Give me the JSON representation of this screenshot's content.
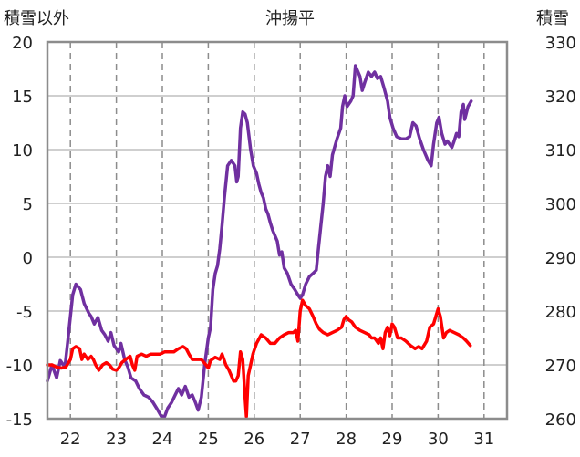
{
  "chart_data": {
    "type": "line",
    "title": "沖揚平",
    "left_axis_label": "積雪以外",
    "right_axis_label": "積雪",
    "x_ticks": [
      "22",
      "23",
      "24",
      "25",
      "26",
      "27",
      "28",
      "29",
      "30",
      "31"
    ],
    "xlim": [
      21.5,
      31.5
    ],
    "y_left": {
      "min": -15,
      "max": 20,
      "ticks": [
        "-15",
        "-10",
        "-5",
        "0",
        "5",
        "10",
        "15",
        "20"
      ]
    },
    "y_right": {
      "min": 260,
      "max": 330,
      "ticks": [
        "260",
        "270",
        "280",
        "290",
        "300",
        "310",
        "320",
        "330"
      ]
    },
    "grid": {
      "vertical": "dashed",
      "horizontal": "solid"
    },
    "series": [
      {
        "name": "",
        "axis": "left",
        "color": "#7030a0",
        "points": [
          [
            21.5,
            -11.5
          ],
          [
            21.6,
            -10.0
          ],
          [
            21.7,
            -11.2
          ],
          [
            21.78,
            -9.6
          ],
          [
            21.88,
            -10.2
          ],
          [
            21.95,
            -7.5
          ],
          [
            22.05,
            -3.5
          ],
          [
            22.12,
            -2.5
          ],
          [
            22.22,
            -3.0
          ],
          [
            22.3,
            -4.3
          ],
          [
            22.4,
            -5.2
          ],
          [
            22.45,
            -5.5
          ],
          [
            22.52,
            -6.2
          ],
          [
            22.6,
            -5.6
          ],
          [
            22.68,
            -6.8
          ],
          [
            22.75,
            -7.2
          ],
          [
            22.82,
            -7.8
          ],
          [
            22.88,
            -7.0
          ],
          [
            22.95,
            -8.2
          ],
          [
            23.05,
            -8.8
          ],
          [
            23.1,
            -8.0
          ],
          [
            23.18,
            -9.5
          ],
          [
            23.25,
            -10.2
          ],
          [
            23.32,
            -11.2
          ],
          [
            23.42,
            -11.5
          ],
          [
            23.5,
            -12.2
          ],
          [
            23.6,
            -12.8
          ],
          [
            23.7,
            -13.0
          ],
          [
            23.8,
            -13.5
          ],
          [
            23.9,
            -14.2
          ],
          [
            23.98,
            -14.8
          ],
          [
            24.05,
            -14.8
          ],
          [
            24.12,
            -14.0
          ],
          [
            24.2,
            -13.5
          ],
          [
            24.28,
            -12.8
          ],
          [
            24.35,
            -12.2
          ],
          [
            24.42,
            -12.8
          ],
          [
            24.5,
            -12.0
          ],
          [
            24.58,
            -13.0
          ],
          [
            24.65,
            -12.8
          ],
          [
            24.72,
            -13.5
          ],
          [
            24.78,
            -14.2
          ],
          [
            24.85,
            -13.0
          ],
          [
            24.92,
            -10.0
          ],
          [
            25.0,
            -7.5
          ],
          [
            25.05,
            -6.5
          ],
          [
            25.1,
            -3.0
          ],
          [
            25.15,
            -1.5
          ],
          [
            25.2,
            -0.8
          ],
          [
            25.25,
            0.8
          ],
          [
            25.3,
            3.0
          ],
          [
            25.35,
            5.5
          ],
          [
            25.42,
            8.5
          ],
          [
            25.5,
            9.0
          ],
          [
            25.58,
            8.5
          ],
          [
            25.62,
            7.0
          ],
          [
            25.65,
            7.5
          ],
          [
            25.7,
            12.0
          ],
          [
            25.75,
            13.5
          ],
          [
            25.8,
            13.3
          ],
          [
            25.85,
            12.5
          ],
          [
            25.92,
            10.0
          ],
          [
            25.98,
            8.5
          ],
          [
            26.05,
            7.8
          ],
          [
            26.1,
            6.8
          ],
          [
            26.15,
            6.0
          ],
          [
            26.2,
            5.5
          ],
          [
            26.25,
            4.5
          ],
          [
            26.3,
            4.0
          ],
          [
            26.35,
            3.2
          ],
          [
            26.4,
            2.5
          ],
          [
            26.5,
            1.5
          ],
          [
            26.55,
            0.2
          ],
          [
            26.6,
            0.5
          ],
          [
            26.65,
            -1.0
          ],
          [
            26.72,
            -1.5
          ],
          [
            26.8,
            -2.5
          ],
          [
            26.88,
            -3.0
          ],
          [
            26.95,
            -3.5
          ],
          [
            27.0,
            -3.8
          ],
          [
            27.05,
            -3.5
          ],
          [
            27.12,
            -2.5
          ],
          [
            27.2,
            -1.8
          ],
          [
            27.28,
            -1.5
          ],
          [
            27.35,
            -1.2
          ],
          [
            27.4,
            1.0
          ],
          [
            27.45,
            3.0
          ],
          [
            27.5,
            5.0
          ],
          [
            27.55,
            7.5
          ],
          [
            27.6,
            8.5
          ],
          [
            27.65,
            7.5
          ],
          [
            27.7,
            9.5
          ],
          [
            27.8,
            11.0
          ],
          [
            27.88,
            12.0
          ],
          [
            27.92,
            14.0
          ],
          [
            27.97,
            15.0
          ],
          [
            28.02,
            14.0
          ],
          [
            28.1,
            14.5
          ],
          [
            28.15,
            15.0
          ],
          [
            28.2,
            17.8
          ],
          [
            28.25,
            17.3
          ],
          [
            28.3,
            16.8
          ],
          [
            28.35,
            15.5
          ],
          [
            28.4,
            16.2
          ],
          [
            28.48,
            17.2
          ],
          [
            28.55,
            16.8
          ],
          [
            28.62,
            17.2
          ],
          [
            28.68,
            16.6
          ],
          [
            28.75,
            16.8
          ],
          [
            28.82,
            15.8
          ],
          [
            28.9,
            14.5
          ],
          [
            28.95,
            13.0
          ],
          [
            29.02,
            12.0
          ],
          [
            29.1,
            11.2
          ],
          [
            29.2,
            11.0
          ],
          [
            29.3,
            11.0
          ],
          [
            29.38,
            11.2
          ],
          [
            29.45,
            12.5
          ],
          [
            29.52,
            12.2
          ],
          [
            29.6,
            11.0
          ],
          [
            29.68,
            10.0
          ],
          [
            29.78,
            9.0
          ],
          [
            29.85,
            8.5
          ],
          [
            29.9,
            10.5
          ],
          [
            29.97,
            12.5
          ],
          [
            30.02,
            13.0
          ],
          [
            30.08,
            11.5
          ],
          [
            30.15,
            10.5
          ],
          [
            30.2,
            10.8
          ],
          [
            30.25,
            10.5
          ],
          [
            30.3,
            10.2
          ],
          [
            30.35,
            10.8
          ],
          [
            30.4,
            11.5
          ],
          [
            30.45,
            11.2
          ],
          [
            30.5,
            13.5
          ],
          [
            30.55,
            14.2
          ],
          [
            30.58,
            12.8
          ],
          [
            30.65,
            14.0
          ],
          [
            30.72,
            14.5
          ]
        ]
      },
      {
        "name": "",
        "axis": "left",
        "color": "#ff0000",
        "points": [
          [
            21.5,
            -10.0
          ],
          [
            21.6,
            -10.0
          ],
          [
            21.7,
            -10.2
          ],
          [
            21.8,
            -10.3
          ],
          [
            21.9,
            -10.2
          ],
          [
            22.0,
            -9.5
          ],
          [
            22.05,
            -8.5
          ],
          [
            22.12,
            -8.3
          ],
          [
            22.2,
            -8.5
          ],
          [
            22.25,
            -9.5
          ],
          [
            22.3,
            -9.0
          ],
          [
            22.38,
            -9.5
          ],
          [
            22.45,
            -9.2
          ],
          [
            22.5,
            -9.5
          ],
          [
            22.55,
            -10.0
          ],
          [
            22.62,
            -10.5
          ],
          [
            22.7,
            -10.0
          ],
          [
            22.78,
            -9.8
          ],
          [
            22.85,
            -10.0
          ],
          [
            22.92,
            -10.4
          ],
          [
            23.0,
            -10.5
          ],
          [
            23.05,
            -10.3
          ],
          [
            23.12,
            -9.8
          ],
          [
            23.2,
            -9.5
          ],
          [
            23.3,
            -9.2
          ],
          [
            23.35,
            -10.0
          ],
          [
            23.4,
            -10.5
          ],
          [
            23.45,
            -9.2
          ],
          [
            23.55,
            -9.0
          ],
          [
            23.65,
            -9.2
          ],
          [
            23.75,
            -9.0
          ],
          [
            23.85,
            -9.0
          ],
          [
            23.95,
            -9.0
          ],
          [
            24.05,
            -8.8
          ],
          [
            24.15,
            -8.8
          ],
          [
            24.25,
            -8.8
          ],
          [
            24.35,
            -8.5
          ],
          [
            24.45,
            -8.3
          ],
          [
            24.52,
            -8.5
          ],
          [
            24.58,
            -9.0
          ],
          [
            24.65,
            -9.5
          ],
          [
            24.75,
            -9.5
          ],
          [
            24.85,
            -9.5
          ],
          [
            24.95,
            -10.0
          ],
          [
            25.0,
            -10.3
          ],
          [
            25.05,
            -9.6
          ],
          [
            25.15,
            -9.3
          ],
          [
            25.25,
            -9.5
          ],
          [
            25.3,
            -9.0
          ],
          [
            25.38,
            -10.0
          ],
          [
            25.45,
            -10.5
          ],
          [
            25.5,
            -11.0
          ],
          [
            25.55,
            -11.5
          ],
          [
            25.6,
            -11.5
          ],
          [
            25.65,
            -11.0
          ],
          [
            25.7,
            -8.8
          ],
          [
            25.75,
            -9.5
          ],
          [
            25.8,
            -13.0
          ],
          [
            25.83,
            -14.8
          ],
          [
            25.87,
            -11.0
          ],
          [
            25.92,
            -10.0
          ],
          [
            25.97,
            -9.0
          ],
          [
            26.05,
            -8.0
          ],
          [
            26.15,
            -7.2
          ],
          [
            26.25,
            -7.5
          ],
          [
            26.35,
            -8.0
          ],
          [
            26.45,
            -8.0
          ],
          [
            26.55,
            -7.5
          ],
          [
            26.65,
            -7.2
          ],
          [
            26.75,
            -7.0
          ],
          [
            26.85,
            -7.0
          ],
          [
            26.9,
            -6.8
          ],
          [
            26.95,
            -7.8
          ],
          [
            27.0,
            -5.0
          ],
          [
            27.05,
            -4.0
          ],
          [
            27.12,
            -4.5
          ],
          [
            27.2,
            -4.8
          ],
          [
            27.28,
            -5.5
          ],
          [
            27.35,
            -6.2
          ],
          [
            27.42,
            -6.7
          ],
          [
            27.5,
            -7.0
          ],
          [
            27.6,
            -7.2
          ],
          [
            27.7,
            -7.0
          ],
          [
            27.8,
            -6.8
          ],
          [
            27.9,
            -6.5
          ],
          [
            27.95,
            -5.8
          ],
          [
            28.0,
            -5.5
          ],
          [
            28.05,
            -5.8
          ],
          [
            28.12,
            -6.0
          ],
          [
            28.2,
            -6.5
          ],
          [
            28.3,
            -6.8
          ],
          [
            28.4,
            -7.0
          ],
          [
            28.5,
            -7.2
          ],
          [
            28.55,
            -7.5
          ],
          [
            28.62,
            -7.5
          ],
          [
            28.7,
            -8.0
          ],
          [
            28.75,
            -7.5
          ],
          [
            28.8,
            -8.5
          ],
          [
            28.85,
            -7.0
          ],
          [
            28.9,
            -6.5
          ],
          [
            28.95,
            -7.3
          ],
          [
            29.0,
            -6.2
          ],
          [
            29.05,
            -6.5
          ],
          [
            29.12,
            -7.5
          ],
          [
            29.2,
            -7.5
          ],
          [
            29.3,
            -7.8
          ],
          [
            29.4,
            -8.2
          ],
          [
            29.5,
            -8.5
          ],
          [
            29.58,
            -8.3
          ],
          [
            29.65,
            -8.5
          ],
          [
            29.75,
            -7.8
          ],
          [
            29.82,
            -6.5
          ],
          [
            29.9,
            -6.2
          ],
          [
            29.95,
            -5.5
          ],
          [
            30.0,
            -4.8
          ],
          [
            30.05,
            -5.5
          ],
          [
            30.12,
            -7.5
          ],
          [
            30.18,
            -7.0
          ],
          [
            30.25,
            -6.8
          ],
          [
            30.35,
            -7.0
          ],
          [
            30.45,
            -7.2
          ],
          [
            30.55,
            -7.5
          ],
          [
            30.62,
            -7.8
          ],
          [
            30.7,
            -8.2
          ]
        ]
      }
    ]
  }
}
